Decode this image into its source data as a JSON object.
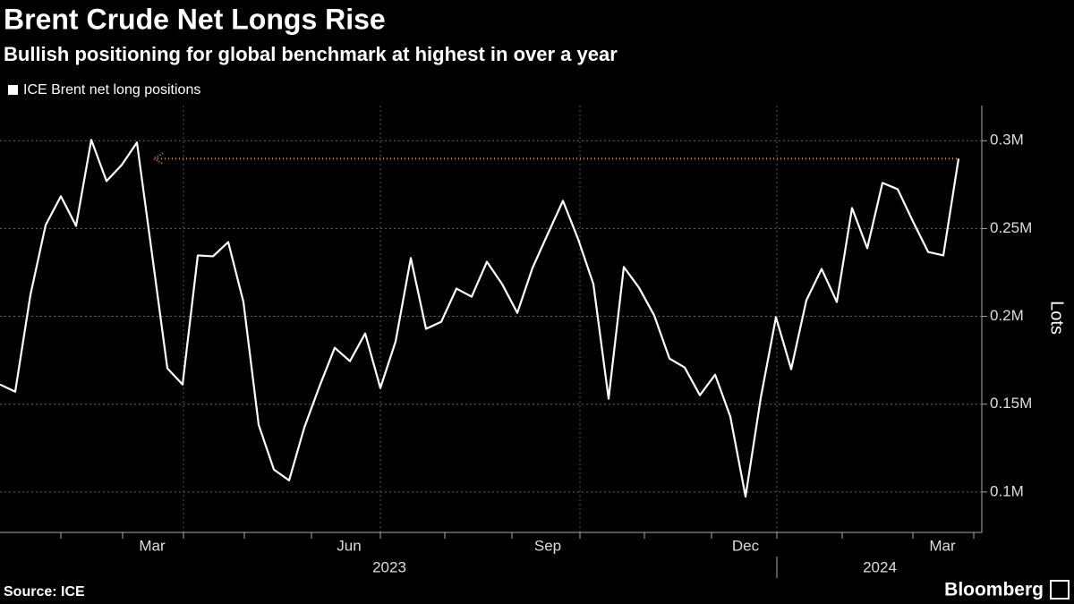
{
  "chart_data": {
    "type": "line",
    "title": "Brent Crude Net Longs Rise",
    "subtitle": "Bullish positioning for global benchmark at highest in over a year",
    "y_axis_label": "Lots",
    "source": "Source: ICE",
    "brand": "Bloomberg",
    "month_labels": [
      "Mar",
      "Jun",
      "Sep",
      "Dec",
      "Mar"
    ],
    "year_labels": [
      "2023",
      "2024"
    ],
    "categories": [
      null,
      null,
      null,
      null,
      null,
      null,
      null,
      null,
      null,
      null,
      null,
      null,
      null,
      null,
      null,
      null,
      null,
      null,
      null,
      null,
      null,
      null,
      null,
      null,
      null,
      null,
      null,
      null,
      null,
      null,
      null,
      null,
      null,
      null,
      null,
      null,
      null,
      null,
      null,
      null,
      null,
      null,
      null,
      null,
      null,
      null,
      null,
      null,
      null,
      null,
      null,
      null,
      null,
      null,
      null,
      null,
      null,
      null,
      null,
      null,
      null,
      null,
      null,
      null
    ],
    "series": [
      {
        "name": "ICE Brent net long positions",
        "color": "#ffffff",
        "values": [
          161200,
          157100,
          212200,
          252000,
          268400,
          251500,
          300500,
          277000,
          286200,
          299000,
          235000,
          170400,
          161200,
          234700,
          234200,
          242300,
          208200,
          138300,
          112800,
          106600,
          136700,
          160200,
          182100,
          174500,
          190300,
          159200,
          185700,
          233200,
          192900,
          196900,
          215800,
          211200,
          231100,
          218400,
          202000,
          227600,
          246900,
          265800,
          243900,
          218400,
          153100,
          228100,
          216300,
          200500,
          176000,
          170900,
          155100,
          166800,
          142900,
          97400,
          153600,
          199500,
          169900,
          209200,
          227000,
          208200,
          261700,
          238800,
          276000,
          272400,
          254100,
          236700,
          234700,
          289800
        ]
      }
    ],
    "reference_color": "#e8883a",
    "ylim": [
      77000,
      320000
    ],
    "yticks": [
      {
        "value": 100000,
        "label": "0.1M"
      },
      {
        "value": 150000,
        "label": "0.15M"
      },
      {
        "value": 200000,
        "label": "0.2M"
      },
      {
        "value": 250000,
        "label": "0.25M"
      },
      {
        "value": 300000,
        "label": "0.3M"
      }
    ],
    "grid": true
  }
}
